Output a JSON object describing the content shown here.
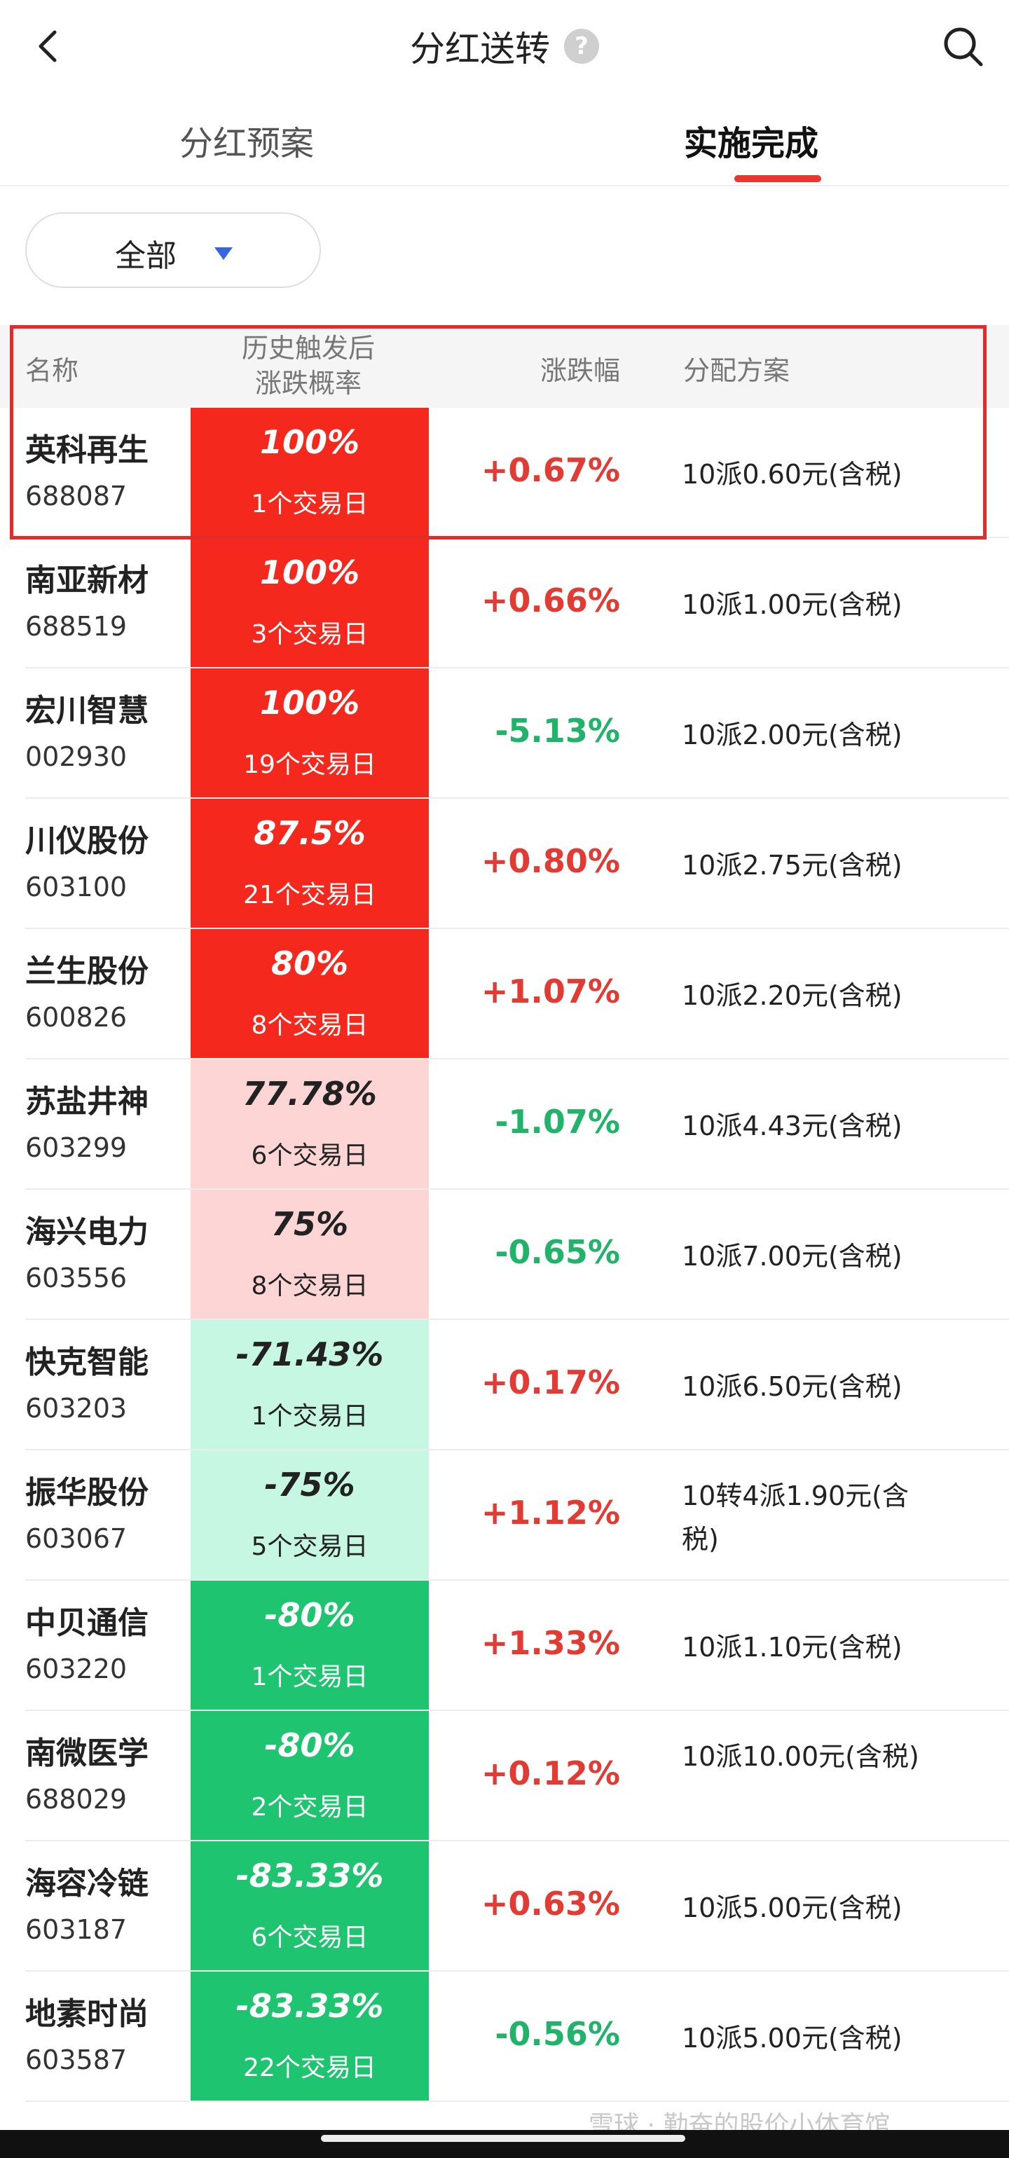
{
  "header": {
    "title": "分红送转",
    "help_icon": "?"
  },
  "tabs": [
    {
      "label": "分红预案",
      "active": false
    },
    {
      "label": "实施完成",
      "active": true
    }
  ],
  "filter": {
    "label": "全部"
  },
  "table": {
    "columns": {
      "name": "名称",
      "prob_line1": "历史触发后",
      "prob_line2": "涨跌概率",
      "change": "涨跌幅",
      "plan": "分配方案"
    },
    "rows": [
      {
        "name": "英科再生",
        "code": "688087",
        "prob": "100%",
        "days": "1个交易日",
        "change": "+0.67%",
        "plan": "10派0.60元(含税)",
        "bg": "#f4281c",
        "trend": "up"
      },
      {
        "name": "南亚新材",
        "code": "688519",
        "prob": "100%",
        "days": "3个交易日",
        "change": "+0.66%",
        "plan": "10派1.00元(含税)",
        "bg": "#f4281c",
        "trend": "up"
      },
      {
        "name": "宏川智慧",
        "code": "002930",
        "prob": "100%",
        "days": "19个交易日",
        "change": "-5.13%",
        "plan": "10派2.00元(含税)",
        "bg": "#f4281c",
        "trend": "down"
      },
      {
        "name": "川仪股份",
        "code": "603100",
        "prob": "87.5%",
        "days": "21个交易日",
        "change": "+0.80%",
        "plan": "10派2.75元(含税)",
        "bg": "#f4281c",
        "trend": "up"
      },
      {
        "name": "兰生股份",
        "code": "600826",
        "prob": "80%",
        "days": "8个交易日",
        "change": "+1.07%",
        "plan": "10派2.20元(含税)",
        "bg": "#f4281c",
        "trend": "up"
      },
      {
        "name": "苏盐井神",
        "code": "603299",
        "prob": "77.78%",
        "days": "6个交易日",
        "change": "-1.07%",
        "plan": "10派4.43元(含税)",
        "bg": "#fdd5d4",
        "trend": "down"
      },
      {
        "name": "海兴电力",
        "code": "603556",
        "prob": "75%",
        "days": "8个交易日",
        "change": "-0.65%",
        "plan": "10派7.00元(含税)",
        "bg": "#fdd5d4",
        "trend": "down"
      },
      {
        "name": "快克智能",
        "code": "603203",
        "prob": "-71.43%",
        "days": "1个交易日",
        "change": "+0.17%",
        "plan": "10派6.50元(含税)",
        "bg": "#c6f7e2",
        "trend": "up"
      },
      {
        "name": "振华股份",
        "code": "603067",
        "prob": "-75%",
        "days": "5个交易日",
        "change": "+1.12%",
        "plan": "10转4派1.90元(含税)",
        "bg": "#c6f7e2",
        "trend": "up"
      },
      {
        "name": "中贝通信",
        "code": "603220",
        "prob": "-80%",
        "days": "1个交易日",
        "change": "+1.33%",
        "plan": "10派1.10元(含税)",
        "bg": "#1ec46f",
        "trend": "up"
      },
      {
        "name": "南微医学",
        "code": "688029",
        "prob": "-80%",
        "days": "2个交易日",
        "change": "+0.12%",
        "plan": "10派10.00元(含税)",
        "bg": "#1ec46f",
        "trend": "up"
      },
      {
        "name": "海容冷链",
        "code": "603187",
        "prob": "-83.33%",
        "days": "6个交易日",
        "change": "+0.63%",
        "plan": "10派5.00元(含税)",
        "bg": "#1ec46f",
        "trend": "up"
      },
      {
        "name": "地素时尚",
        "code": "603587",
        "prob": "-83.33%",
        "days": "22个交易日",
        "change": "-0.56%",
        "plan": "10派5.00元(含税)",
        "bg": "#1ec46f",
        "trend": "down"
      }
    ]
  },
  "watermark": "雪球 · 勤奋的股价小体育馆",
  "colors": {
    "accent": "#e8372e",
    "up": "#e23b33",
    "down": "#21b36a",
    "filter_caret": "#3566e0"
  }
}
